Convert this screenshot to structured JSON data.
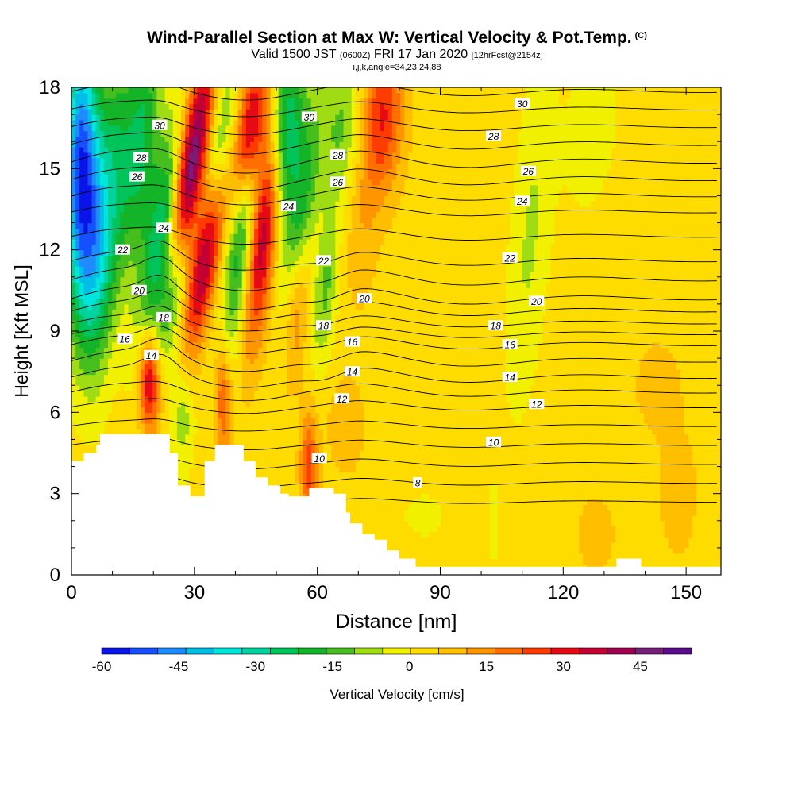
{
  "chart_data": {
    "type": "heatmap",
    "title": "Wind-Parallel Section at Max W: Vertical Velocity & Pot.Temp.",
    "title_mark": "(C)",
    "subtitle_main": "Valid 1500 JST",
    "subtitle_utc": "(0600Z)",
    "subtitle_date": "FRI 17 Jan 2020",
    "subtitle_fcst": "[12hrFcst@2154z]",
    "params": "i,j,k,angle=34,23,24,88",
    "xlabel": "Distance [nm]",
    "ylabel": "Height [Kft MSL]",
    "xlim": [
      0,
      158.5
    ],
    "ylim": [
      0,
      18
    ],
    "x_ticks": [
      0,
      30,
      60,
      90,
      120,
      150
    ],
    "y_ticks": [
      0,
      3,
      6,
      9,
      12,
      15,
      18
    ],
    "colorbar": {
      "label": "Vertical Velocity [cm/s]",
      "range": [
        -60,
        55
      ],
      "tick_labels": [
        -60,
        -45,
        -30,
        -15,
        0,
        15,
        30,
        45
      ],
      "colors": [
        "#0a14e6",
        "#1550ff",
        "#1e8cff",
        "#00bee6",
        "#00e6dc",
        "#00d2a0",
        "#00c35a",
        "#14b428",
        "#46be1e",
        "#a0dc14",
        "#f0f000",
        "#ffdc00",
        "#ffbe00",
        "#ff9600",
        "#ff6e00",
        "#ff3c00",
        "#e60a14",
        "#c30032",
        "#a00050",
        "#781e78",
        "#5a0a8c"
      ]
    },
    "theta_contours": [
      {
        "value": 8,
        "height": 3.4,
        "label_x": 83
      },
      {
        "value": 10,
        "height": 4.8,
        "label_x": 103
      },
      {
        "value": 12,
        "height": 6.2,
        "label_x": 113
      },
      {
        "value": 14,
        "height": 7.3,
        "label_x": 107
      },
      {
        "value": 16,
        "height": 8.5,
        "label_x": 107
      },
      {
        "value": 18,
        "height": 9.3,
        "label_x": 104
      },
      {
        "value": 20,
        "height": 10.2,
        "label_x": 113
      },
      {
        "value": 22,
        "height": 11.6,
        "label_x": 107
      },
      {
        "value": 24,
        "height": 13.4,
        "label_x": 110
      },
      {
        "value": 26,
        "height": 14.6,
        "label_x": 112
      },
      {
        "value": 28,
        "height": 15.9,
        "label_x": 103
      },
      {
        "value": 30,
        "height": 17.2,
        "label_x": 110
      }
    ],
    "contour_labels": [
      {
        "text": "8",
        "x": 84.5,
        "y": 3.4
      },
      {
        "text": "10",
        "x": 60.5,
        "y": 4.3
      },
      {
        "text": "10",
        "x": 103,
        "y": 4.9
      },
      {
        "text": "12",
        "x": 66,
        "y": 6.5
      },
      {
        "text": "12",
        "x": 113.5,
        "y": 6.3
      },
      {
        "text": "14",
        "x": 19.5,
        "y": 8.1
      },
      {
        "text": "14",
        "x": 68.5,
        "y": 7.5
      },
      {
        "text": "14",
        "x": 107,
        "y": 7.3
      },
      {
        "text": "16",
        "x": 13,
        "y": 8.7
      },
      {
        "text": "16",
        "x": 68.5,
        "y": 8.6
      },
      {
        "text": "16",
        "x": 107,
        "y": 8.5
      },
      {
        "text": "18",
        "x": 22.5,
        "y": 9.5
      },
      {
        "text": "18",
        "x": 61.5,
        "y": 9.2
      },
      {
        "text": "18",
        "x": 103.5,
        "y": 9.2
      },
      {
        "text": "20",
        "x": 16.5,
        "y": 10.5
      },
      {
        "text": "20",
        "x": 71.5,
        "y": 10.2
      },
      {
        "text": "20",
        "x": 113.5,
        "y": 10.1
      },
      {
        "text": "22",
        "x": 12.5,
        "y": 12.0
      },
      {
        "text": "22",
        "x": 61.5,
        "y": 11.6
      },
      {
        "text": "22",
        "x": 107,
        "y": 11.7
      },
      {
        "text": "24",
        "x": 22.5,
        "y": 12.8
      },
      {
        "text": "24",
        "x": 53,
        "y": 13.6
      },
      {
        "text": "24",
        "x": 110,
        "y": 13.8
      },
      {
        "text": "26",
        "x": 16,
        "y": 14.7
      },
      {
        "text": "26",
        "x": 65,
        "y": 14.5
      },
      {
        "text": "26",
        "x": 111.5,
        "y": 14.9
      },
      {
        "text": "28",
        "x": 17,
        "y": 15.4
      },
      {
        "text": "28",
        "x": 65,
        "y": 15.5
      },
      {
        "text": "28",
        "x": 103,
        "y": 16.2
      },
      {
        "text": "30",
        "x": 21.5,
        "y": 16.6
      },
      {
        "text": "30",
        "x": 58,
        "y": 16.9
      },
      {
        "text": "30",
        "x": 110,
        "y": 17.4
      }
    ],
    "terrain": [
      [
        0,
        4.2
      ],
      [
        3,
        4.2
      ],
      [
        3,
        4.5
      ],
      [
        6,
        4.5
      ],
      [
        6,
        4.8
      ],
      [
        7,
        4.8
      ],
      [
        7,
        5.2
      ],
      [
        24,
        5.2
      ],
      [
        24,
        4.5
      ],
      [
        26,
        4.5
      ],
      [
        26,
        3.3
      ],
      [
        29,
        3.3
      ],
      [
        29,
        2.9
      ],
      [
        32.5,
        2.9
      ],
      [
        32.5,
        4.2
      ],
      [
        35,
        4.2
      ],
      [
        35,
        4.8
      ],
      [
        42,
        4.8
      ],
      [
        42,
        4.2
      ],
      [
        45,
        4.2
      ],
      [
        45,
        3.6
      ],
      [
        48,
        3.6
      ],
      [
        48,
        3.3
      ],
      [
        51,
        3.3
      ],
      [
        51,
        3.0
      ],
      [
        53,
        3.0
      ],
      [
        53,
        2.9
      ],
      [
        58,
        2.9
      ],
      [
        58,
        3.2
      ],
      [
        64,
        3.2
      ],
      [
        64,
        3.0
      ],
      [
        67,
        3.0
      ],
      [
        67,
        2.3
      ],
      [
        68,
        2.3
      ],
      [
        68,
        1.9
      ],
      [
        71,
        1.9
      ],
      [
        71,
        1.5
      ],
      [
        74,
        1.5
      ],
      [
        74,
        1.3
      ],
      [
        77,
        1.3
      ],
      [
        77,
        0.9
      ],
      [
        80,
        0.9
      ],
      [
        80,
        0.6
      ],
      [
        84,
        0.6
      ],
      [
        84,
        0.3
      ],
      [
        87,
        0.3
      ],
      [
        87,
        0.3
      ],
      [
        133,
        0.3
      ],
      [
        133,
        0.6
      ],
      [
        139,
        0.6
      ],
      [
        139,
        0.3
      ],
      [
        158.5,
        0.3
      ]
    ],
    "w_features": [
      {
        "x": 2,
        "y": 15.5,
        "sx": 3,
        "sy": 3.5,
        "w": -50,
        "tilt": 0.15
      },
      {
        "x": 5,
        "y": 12.0,
        "sx": 3,
        "sy": 3.0,
        "w": -30,
        "tilt": 0.15
      },
      {
        "x": 10,
        "y": 14.5,
        "sx": 3,
        "sy": 4.0,
        "w": -22,
        "tilt": 0.4
      },
      {
        "x": 17,
        "y": 16.0,
        "sx": 3,
        "sy": 3.0,
        "w": -25,
        "tilt": 0.5
      },
      {
        "x": 22,
        "y": 12.5,
        "sx": 3,
        "sy": 3.0,
        "w": -30,
        "tilt": 0.9
      },
      {
        "x": 25,
        "y": 10.5,
        "sx": 2.5,
        "sy": 2.0,
        "w": -22,
        "tilt": 0.9
      },
      {
        "x": 29,
        "y": 15.0,
        "sx": 2.5,
        "sy": 3.0,
        "w": 50,
        "tilt": 1.0
      },
      {
        "x": 33,
        "y": 12.0,
        "sx": 2.5,
        "sy": 2.5,
        "w": 45,
        "tilt": 1.1
      },
      {
        "x": 36,
        "y": 15.0,
        "sx": 2.5,
        "sy": 2.5,
        "w": -25,
        "tilt": 0.8
      },
      {
        "x": 42,
        "y": 13.0,
        "sx": 2.5,
        "sy": 3.5,
        "w": -28,
        "tilt": 0.7
      },
      {
        "x": 44,
        "y": 16.5,
        "sx": 2.5,
        "sy": 2.0,
        "w": 45,
        "tilt": 0.8
      },
      {
        "x": 47,
        "y": 13.0,
        "sx": 2.5,
        "sy": 3.0,
        "w": 40,
        "tilt": 0.7
      },
      {
        "x": 52,
        "y": 16.5,
        "sx": 3.0,
        "sy": 2.5,
        "w": -35,
        "tilt": 0.4
      },
      {
        "x": 56,
        "y": 13.0,
        "sx": 2.5,
        "sy": 3.0,
        "w": -22,
        "tilt": 0.6
      },
      {
        "x": 62,
        "y": 10.5,
        "sx": 2.0,
        "sy": 2.0,
        "w": -15,
        "tilt": 0.5
      },
      {
        "x": 55,
        "y": 10.0,
        "sx": 2.0,
        "sy": 2.0,
        "w": 20,
        "tilt": 0.5
      },
      {
        "x": 66,
        "y": 16.5,
        "sx": 4.0,
        "sy": 2.0,
        "w": -15,
        "tilt": 0.3
      },
      {
        "x": 76,
        "y": 17.0,
        "sx": 3.5,
        "sy": 2.0,
        "w": 25,
        "tilt": 0.2
      },
      {
        "x": 71,
        "y": 13.5,
        "sx": 3.0,
        "sy": 2.5,
        "w": 8,
        "tilt": 0.3
      },
      {
        "x": 19,
        "y": 7.2,
        "sx": 1.8,
        "sy": 1.3,
        "w": 35,
        "tilt": 0.0
      },
      {
        "x": 27,
        "y": 6.0,
        "sx": 2.0,
        "sy": 1.6,
        "w": -12,
        "tilt": 0.0
      },
      {
        "x": 37,
        "y": 6.5,
        "sx": 1.5,
        "sy": 1.5,
        "w": 22,
        "tilt": 0.0
      },
      {
        "x": 58,
        "y": 4.0,
        "sx": 1.5,
        "sy": 1.5,
        "w": 22,
        "tilt": 0.0
      },
      {
        "x": 67,
        "y": 5.5,
        "sx": 3.0,
        "sy": 1.2,
        "w": 8,
        "tilt": 0.0
      },
      {
        "x": 112,
        "y": 12.5,
        "sx": 3.5,
        "sy": 4.5,
        "w": -9,
        "tilt": 0.5
      },
      {
        "x": 127,
        "y": 16.5,
        "sx": 4.0,
        "sy": 2.0,
        "w": -8,
        "tilt": 0.6
      },
      {
        "x": 86,
        "y": 2.2,
        "sx": 3.0,
        "sy": 0.5,
        "w": -8,
        "tilt": 0.0
      },
      {
        "x": 103,
        "y": 2.0,
        "sx": 1.0,
        "sy": 1.0,
        "w": -7,
        "tilt": 0.0
      },
      {
        "x": 143,
        "y": 7.0,
        "sx": 4.0,
        "sy": 1.2,
        "w": 6,
        "tilt": 0.0
      },
      {
        "x": 148,
        "y": 3.0,
        "sx": 4.0,
        "sy": 2.0,
        "w": 5,
        "tilt": 0.0
      },
      {
        "x": 128,
        "y": 1.5,
        "sx": 4.0,
        "sy": 1.2,
        "w": 5,
        "tilt": 0.0
      }
    ]
  }
}
